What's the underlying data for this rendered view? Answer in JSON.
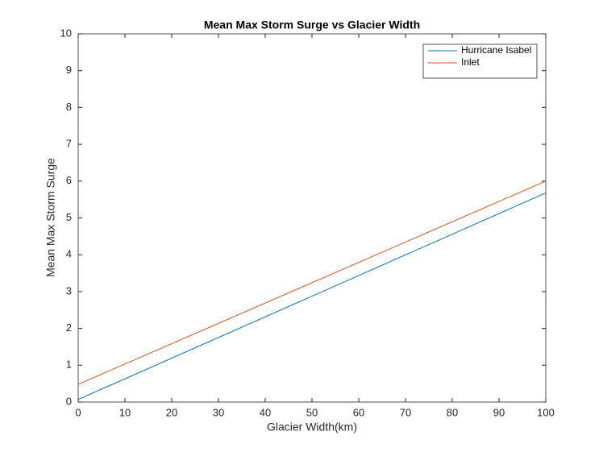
{
  "chart_data": {
    "type": "line",
    "title": "Mean Max Storm Surge vs Glacier Width",
    "x_label": "Glacier Width(km)",
    "y_label": "Mean Max Storm Surge",
    "x": [
      0,
      100
    ],
    "series": [
      {
        "name": "Hurricane Isabel",
        "color": "#0072bd",
        "values": [
          0.07,
          5.68
        ]
      },
      {
        "name": "Inlet",
        "color": "#d95319",
        "values": [
          0.48,
          6.0
        ]
      }
    ],
    "xlim": [
      0,
      100
    ],
    "xticks": [
      0,
      10,
      20,
      30,
      40,
      50,
      60,
      70,
      80,
      90,
      100
    ],
    "ylim": [
      0,
      10
    ],
    "yticks": [
      0,
      1,
      2,
      3,
      4,
      5,
      6,
      7,
      8,
      9,
      10
    ],
    "legend": "upper right"
  }
}
